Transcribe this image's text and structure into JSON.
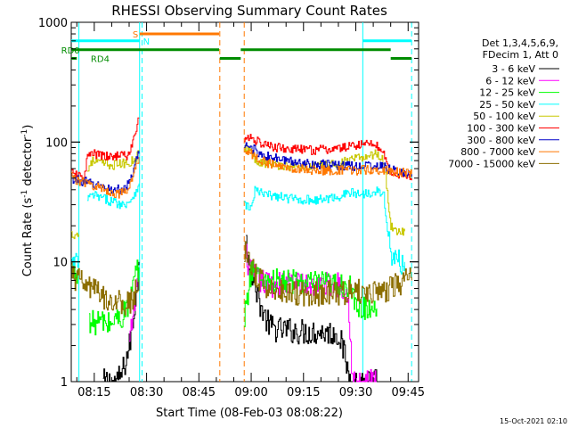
{
  "chart_data": {
    "type": "line",
    "title": "RHESSI Observing Summary Count Rates",
    "xlabel": "Start Time (08-Feb-03 08:08:22)",
    "ylabel": "Count Rate (s",
    "ylabel_sup": "-1",
    "ylabel_tail": " detector",
    "ylabel_end": ")",
    "yscale": "log",
    "xlim": [
      488.4,
      588.0
    ],
    "ylim": [
      1,
      1000
    ],
    "x_units": "minutes after 00:00 on 08-Feb-03",
    "x_ticks": [
      {
        "value": 495,
        "label": "08:15"
      },
      {
        "value": 510,
        "label": "08:30"
      },
      {
        "value": 525,
        "label": "08:45"
      },
      {
        "value": 540,
        "label": "09:00"
      },
      {
        "value": 555,
        "label": "09:15"
      },
      {
        "value": 570,
        "label": "09:30"
      },
      {
        "value": 585,
        "label": "09:45"
      }
    ],
    "y_ticks": [
      {
        "value": 1,
        "label": "1"
      },
      {
        "value": 10,
        "label": "10"
      },
      {
        "value": 100,
        "label": "100"
      },
      {
        "value": 1000,
        "label": "1000"
      }
    ],
    "legend_header": [
      "Det 1,3,4,5,6,9,",
      "FDecim 1, Att 0"
    ],
    "legend_position": "right",
    "series": [
      {
        "name": "3 - 6 keV",
        "color": "#000000",
        "segments": [
          {
            "x": [
              497.5,
              499.5,
              501.5,
              503.0,
              504.0,
              505.0,
              506.0,
              507.0,
              507.8
            ],
            "y": [
              1.0,
              1.0,
              1.0,
              1.2,
              1.5,
              2.0,
              3.0,
              6.0,
              10.0
            ]
          },
          {
            "x": [
              538.5,
              539.0,
              540.0,
              541.0,
              542.0,
              543.0,
              544.0,
              545.0,
              546.0,
              548.0,
              550.0,
              555.0,
              560.0,
              565.0,
              566.0,
              567.0,
              568.0,
              569.0,
              570.0,
              572.0,
              576.0
            ],
            "y": [
              16.0,
              12.0,
              8.0,
              6.5,
              5.0,
              4.0,
              3.4,
              3.0,
              2.8,
              2.7,
              2.7,
              2.6,
              2.6,
              2.5,
              2.0,
              1.5,
              1.1,
              1.0,
              1.0,
              1.0,
              1.0
            ]
          }
        ]
      },
      {
        "name": "6 - 12 keV",
        "color": "#ff00ff",
        "segments": [
          {
            "x": [
              505.0,
              506.0,
              507.0,
              507.8
            ],
            "y": [
              2.0,
              3.5,
              6.0,
              9.0
            ]
          },
          {
            "x": [
              538.5,
              540.0,
              542.0,
              545.0,
              550.0,
              555.0,
              560.0,
              565.0,
              567.0,
              568.0,
              569.0,
              570.0,
              572.0,
              576.0
            ],
            "y": [
              11.0,
              8.0,
              7.0,
              6.5,
              6.5,
              6.4,
              6.4,
              6.5,
              6.3,
              4.0,
              1.0,
              1.0,
              1.0,
              1.0
            ]
          }
        ]
      },
      {
        "name": "12 - 25 keV",
        "color": "#00ff00",
        "segments": [
          {
            "x": [
              488.4,
              490.5
            ],
            "y": [
              8.5,
              8.5
            ]
          },
          {
            "x": [
              493.5,
              495.0,
              497.0,
              499.0,
              501.0,
              503.0,
              505.0,
              506.0,
              507.0,
              507.8
            ],
            "y": [
              3.0,
              3.1,
              3.2,
              3.0,
              3.3,
              3.5,
              4.5,
              6.0,
              8.0,
              9.0
            ]
          },
          {
            "x": [
              538.0,
              540.0,
              542.0,
              545.0,
              548.0,
              550.0,
              555.0,
              560.0,
              565.0,
              568.0,
              570.0,
              572.0,
              574.0,
              576.0
            ],
            "y": [
              3.3,
              9.0,
              7.5,
              7.0,
              6.8,
              6.8,
              6.6,
              6.5,
              6.4,
              6.3,
              4.0,
              4.1,
              4.2,
              4.1
            ]
          }
        ]
      },
      {
        "name": "25 - 50 keV",
        "color": "#00ffff",
        "segments": [
          {
            "x": [
              488.4,
              490.5
            ],
            "y": [
              9.5,
              9.5
            ]
          },
          {
            "x": [
              493.0,
              495.0,
              497.0,
              500.0,
              503.0,
              505.0,
              506.0,
              507.0,
              507.8
            ],
            "y": [
              34.0,
              36.0,
              34.0,
              32.0,
              30.0,
              32.0,
              35.0,
              40.0,
              45.0
            ]
          },
          {
            "x": [
              538.0,
              540.0,
              541.0,
              543.0,
              545.0,
              550.0,
              555.0,
              560.0,
              565.0,
              568.0,
              570.0,
              572.0,
              574.0,
              576.0,
              578.0,
              580.0,
              582.0,
              584.0
            ],
            "y": [
              30.0,
              28.0,
              40.0,
              37.0,
              36.0,
              34.0,
              33.0,
              33.0,
              35.0,
              38.0,
              37.0,
              37.0,
              38.0,
              40.0,
              35.0,
              11.0,
              10.0,
              10.0
            ]
          }
        ]
      },
      {
        "name": "50 - 100 keV",
        "color": "#c8c800",
        "segments": [
          {
            "x": [
              488.4,
              490.5
            ],
            "y": [
              17.0,
              17.0
            ]
          },
          {
            "x": [
              493.0,
              494.0,
              496.0,
              498.0,
              500.0,
              502.0,
              504.0,
              505.0,
              506.0,
              507.0,
              507.8
            ],
            "y": [
              56.0,
              70.0,
              68.0,
              66.0,
              64.0,
              66.0,
              66.0,
              68.0,
              70.0,
              75.0,
              80.0
            ]
          },
          {
            "x": [
              538.0,
              540.0,
              541.0,
              543.0,
              545.0,
              550.0,
              555.0,
              560.0,
              565.0,
              568.0,
              570.0,
              572.0,
              574.0,
              576.0,
              578.0,
              580.0,
              582.0,
              584.0
            ],
            "y": [
              90.0,
              85.0,
              72.0,
              68.0,
              66.0,
              63.0,
              62.0,
              63.0,
              66.0,
              70.0,
              72.0,
              75.0,
              78.0,
              80.0,
              70.0,
              20.0,
              18.0,
              18.0
            ]
          }
        ]
      },
      {
        "name": "100 - 300 keV",
        "color": "#ff0000",
        "segments": [
          {
            "x": [
              488.4,
              490.0,
              492.0,
              493.0,
              494.0,
              496.0,
              498.0,
              500.0,
              502.0,
              503.0,
              504.0,
              505.0,
              506.0,
              507.0,
              507.8
            ],
            "y": [
              55.0,
              52.0,
              50.0,
              75.0,
              80.0,
              78.0,
              76.0,
              74.0,
              80.0,
              78.0,
              75.0,
              80.0,
              100.0,
              130.0,
              160.0
            ]
          },
          {
            "x": [
              538.0,
              540.0,
              542.0,
              545.0,
              550.0,
              555.0,
              560.0,
              565.0,
              568.0,
              570.0,
              572.0,
              575.0,
              578.0,
              580.0,
              582.0,
              584.0,
              586.0
            ],
            "y": [
              105.0,
              110.0,
              100.0,
              92.0,
              88.0,
              86.0,
              86.0,
              88.0,
              92.0,
              95.0,
              95.0,
              100.0,
              80.0,
              55.0,
              55.0,
              52.0,
              48.0
            ]
          }
        ]
      },
      {
        "name": "300 - 800 keV",
        "color": "#0000c8",
        "segments": [
          {
            "x": [
              488.4,
              490.0,
              492.0,
              494.0,
              496.0,
              498.0,
              500.0,
              502.0,
              504.0,
              505.0,
              506.0,
              507.0,
              507.8
            ],
            "y": [
              50.0,
              48.0,
              47.0,
              45.0,
              43.0,
              42.0,
              40.0,
              40.0,
              42.0,
              45.0,
              55.0,
              70.0,
              80.0
            ]
          },
          {
            "x": [
              538.0,
              540.0,
              542.0,
              545.0,
              550.0,
              555.0,
              560.0,
              565.0,
              570.0,
              575.0,
              578.0,
              580.0,
              582.0,
              584.0,
              586.0
            ],
            "y": [
              95.0,
              90.0,
              82.0,
              75.0,
              70.0,
              67.0,
              65.0,
              64.0,
              63.0,
              64.0,
              62.0,
              58.0,
              57.0,
              55.0,
              54.0
            ]
          }
        ]
      },
      {
        "name": "800 - 7000 keV",
        "color": "#ff7800",
        "segments": [
          {
            "x": [
              488.4,
              490.0,
              492.0,
              494.0,
              496.0,
              498.0,
              500.0,
              502.0,
              504.0,
              505.0,
              506.0,
              507.0,
              507.8
            ],
            "y": [
              52.0,
              48.0,
              46.0,
              44.0,
              42.0,
              40.0,
              38.0,
              37.0,
              38.0,
              42.0,
              50.0,
              65.0,
              75.0
            ]
          },
          {
            "x": [
              538.0,
              540.0,
              542.0,
              545.0,
              550.0,
              555.0,
              560.0,
              565.0,
              570.0,
              575.0,
              578.0,
              580.0,
              582.0,
              584.0,
              586.0
            ],
            "y": [
              88.0,
              80.0,
              72.0,
              66.0,
              61.0,
              59.0,
              58.0,
              58.0,
              58.0,
              59.0,
              58.0,
              57.0,
              56.0,
              55.0,
              54.0
            ]
          }
        ]
      },
      {
        "name": "7000 - 15000 keV",
        "color": "#8c6e00",
        "segments": [
          {
            "x": [
              488.4,
              490.0,
              492.0,
              494.0,
              496.0,
              498.0,
              500.0,
              502.0,
              504.0,
              505.0,
              506.0,
              507.0,
              507.8
            ],
            "y": [
              8.0,
              7.0,
              6.5,
              6.0,
              5.5,
              5.0,
              4.8,
              4.6,
              4.4,
              4.5,
              5.0,
              6.0,
              7.0
            ]
          },
          {
            "x": [
              538.0,
              540.0,
              542.0,
              545.0,
              550.0,
              555.0,
              560.0,
              565.0,
              570.0,
              575.0,
              580.0,
              582.0,
              584.0,
              586.0
            ],
            "y": [
              12.0,
              9.0,
              7.0,
              6.2,
              5.6,
              5.5,
              5.5,
              5.6,
              5.6,
              5.7,
              6.0,
              6.5,
              7.0,
              7.0
            ]
          }
        ]
      }
    ],
    "state_bars": [
      {
        "label": "S",
        "color": "#ff7800",
        "y": 800,
        "segments": [
          [
            508.0,
            530.8
          ]
        ],
        "label_x": 506.0
      },
      {
        "label": "N",
        "color": "#00ffff",
        "y": 700,
        "segments": [
          [
            488.4,
            508.0
          ],
          [
            572.0,
            586.0
          ]
        ],
        "label_x": 509.0
      },
      {
        "label": "RD0",
        "color": "#008c00",
        "y": 590,
        "segments": [
          [
            488.4,
            530.8
          ],
          [
            537.0,
            580.0
          ]
        ],
        "label_x": 485.5
      },
      {
        "label": "RD4",
        "color": "#008c00",
        "y": 500,
        "segments": [
          [
            488.4,
            490.0
          ],
          [
            531.0,
            537.0
          ],
          [
            580.0,
            586.0
          ]
        ],
        "label_x": 494.0
      }
    ],
    "vertical_markers": [
      {
        "x": 490.6,
        "color": "#00ffff",
        "style": "solid"
      },
      {
        "x": 508.0,
        "color": "#00ffff",
        "style": "solid"
      },
      {
        "x": 508.7,
        "color": "#00ffff",
        "style": "dashed"
      },
      {
        "x": 531.0,
        "color": "#ff7800",
        "style": "dashed"
      },
      {
        "x": 538.0,
        "color": "#ff7800",
        "style": "dashed"
      },
      {
        "x": 572.0,
        "color": "#00ffff",
        "style": "solid"
      },
      {
        "x": 586.0,
        "color": "#00ffff",
        "style": "dashed"
      }
    ]
  },
  "footer": {
    "timestamp": "15-Oct-2021 02:10"
  }
}
